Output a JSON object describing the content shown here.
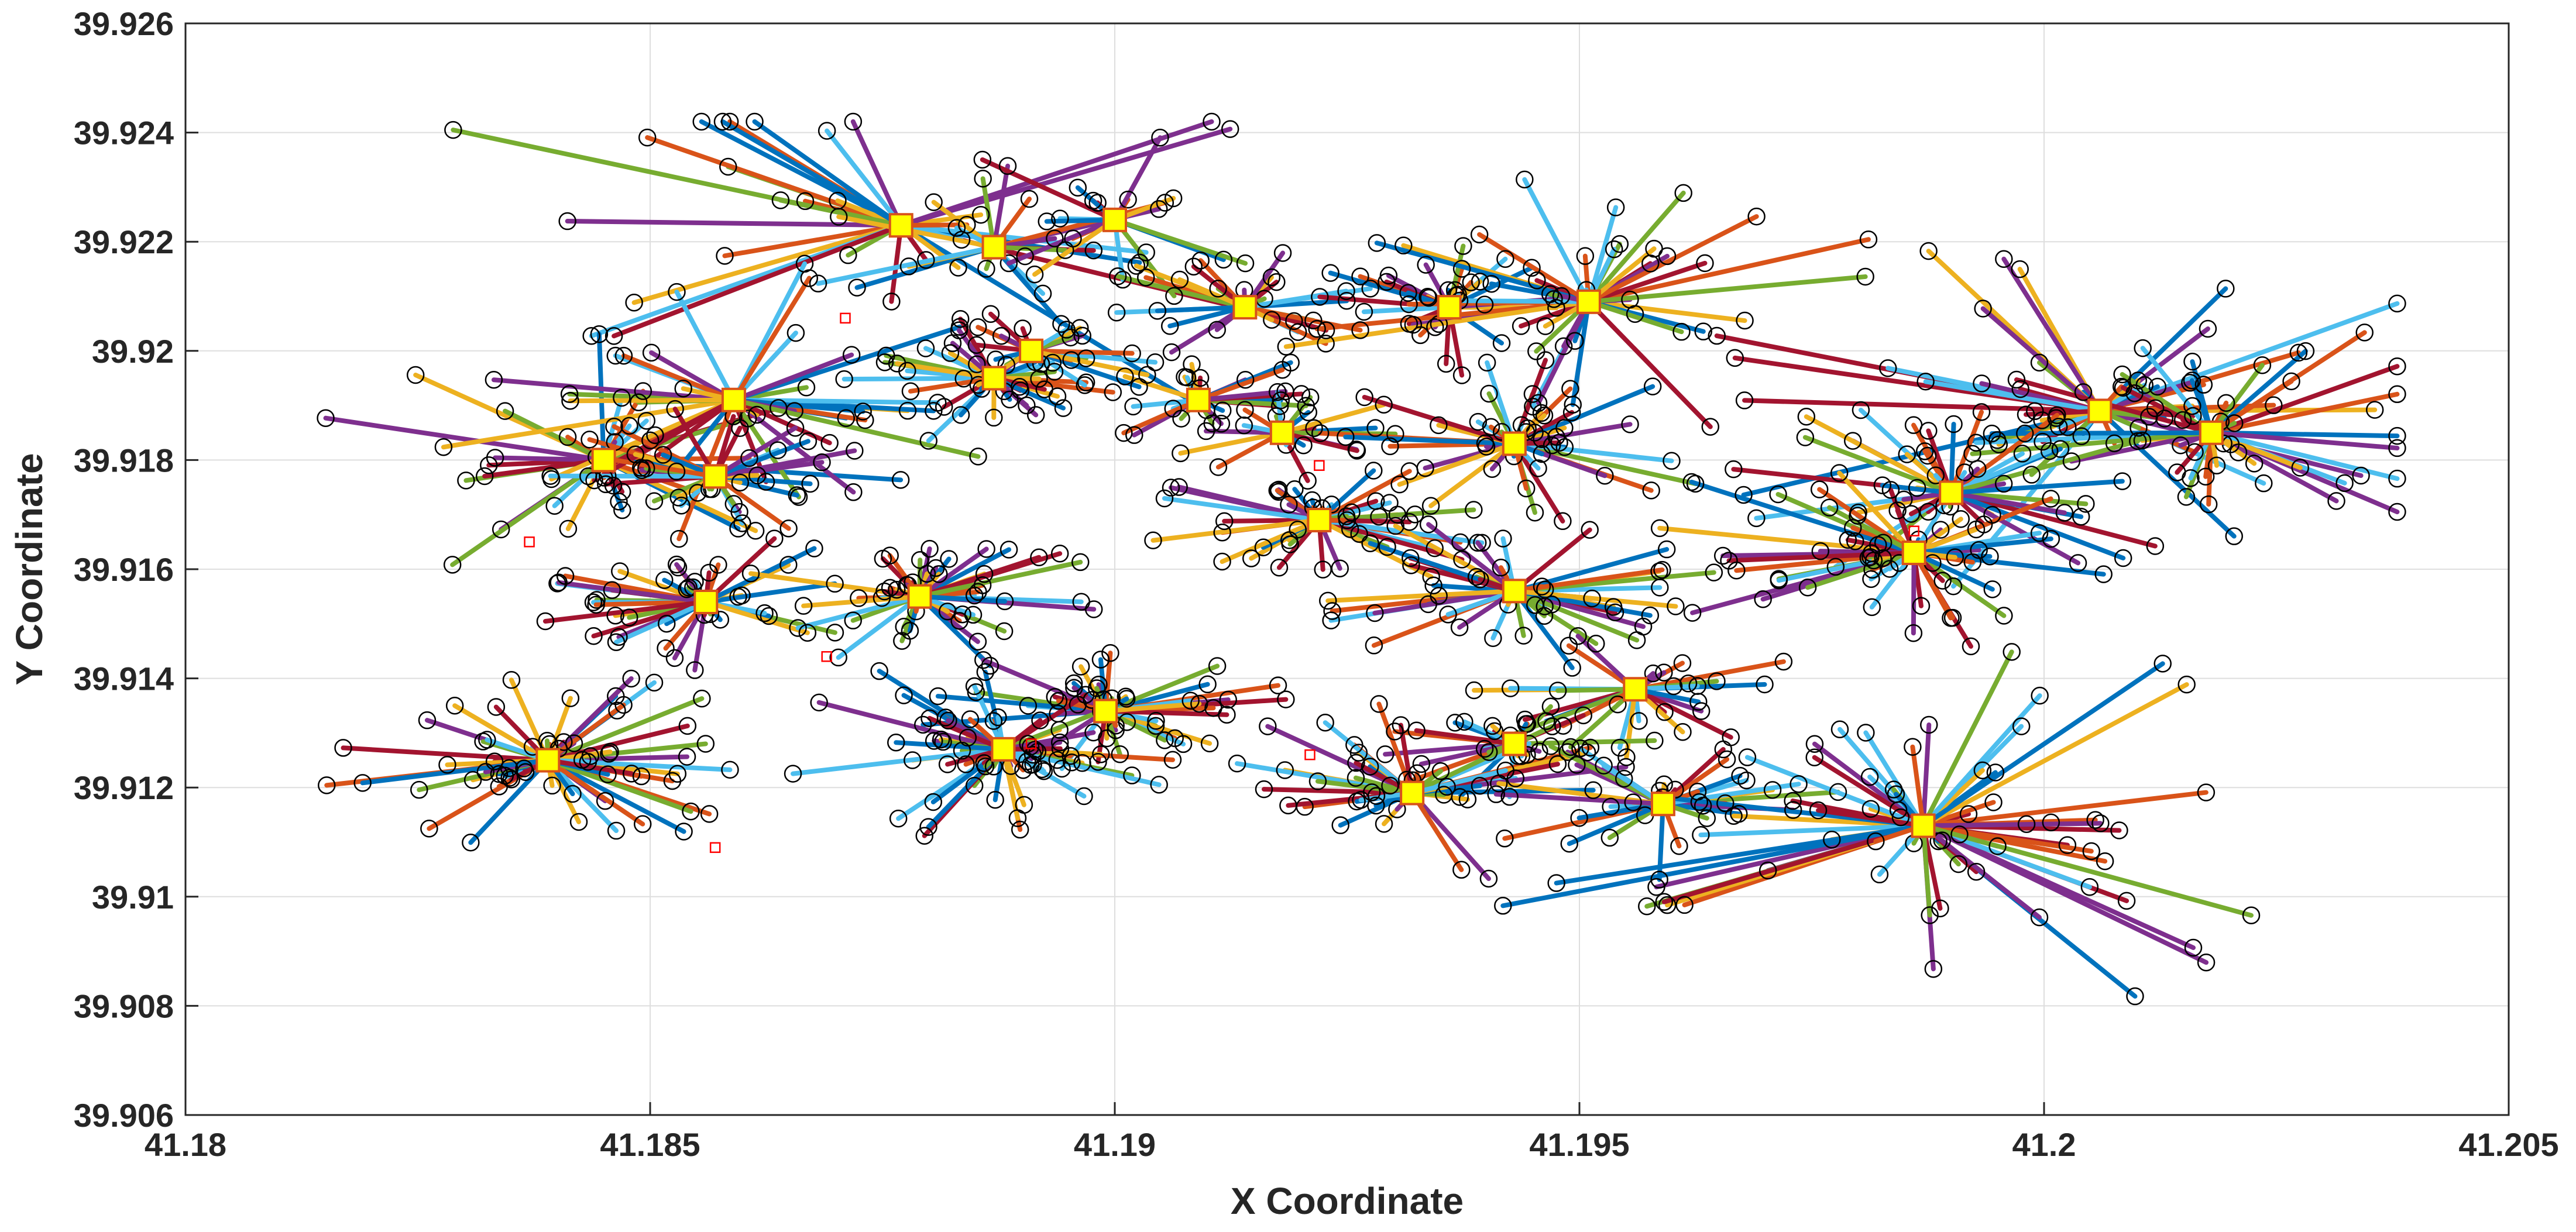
{
  "chart_data": {
    "type": "scatter",
    "title": "",
    "xlabel": "X Coordinate",
    "ylabel": "Y Coordinate",
    "xlim": [
      41.18,
      41.205
    ],
    "ylim": [
      39.906,
      39.926
    ],
    "xticks": [
      "41.18",
      "41.185",
      "41.19",
      "41.195",
      "41.2",
      "41.205"
    ],
    "yticks": [
      "39.906",
      "39.908",
      "39.91",
      "39.912",
      "39.914",
      "39.916",
      "39.918",
      "39.92",
      "39.922",
      "39.924",
      "39.926"
    ],
    "grid": true,
    "legend": "none",
    "line_colors": [
      "#0072BD",
      "#D95319",
      "#EDB120",
      "#7E2F8E",
      "#77AC30",
      "#4DBEEE",
      "#A2142F"
    ],
    "hub_style": {
      "marker": "square",
      "fill": "#FFFF00",
      "edge": "#D95319"
    },
    "customer_style": {
      "marker": "circle",
      "fill": "none",
      "edge": "#000000"
    },
    "unassigned_style": {
      "marker": "square",
      "fill": "none",
      "edge": "#FF0000"
    },
    "hubs": [
      {
        "x": 41.1877,
        "y": 39.9223,
        "spokes": 30,
        "radius": [
          0.5,
          6.0
        ]
      },
      {
        "x": 41.1887,
        "y": 39.9219,
        "spokes": 18,
        "radius": [
          0.3,
          2.2
        ]
      },
      {
        "x": 41.19,
        "y": 39.9224,
        "spokes": 16,
        "radius": [
          0.3,
          2.4
        ]
      },
      {
        "x": 41.1914,
        "y": 39.9208,
        "spokes": 26,
        "radius": [
          0.3,
          1.6
        ]
      },
      {
        "x": 41.1936,
        "y": 39.9208,
        "spokes": 30,
        "radius": [
          0.3,
          1.8
        ]
      },
      {
        "x": 41.1951,
        "y": 39.9209,
        "spokes": 40,
        "radius": [
          0.3,
          3.5
        ]
      },
      {
        "x": 41.2006,
        "y": 39.9189,
        "spokes": 50,
        "radius": [
          0.5,
          4.8
        ]
      },
      {
        "x": 41.2018,
        "y": 39.9185,
        "spokes": 40,
        "radius": [
          0.3,
          3.2
        ]
      },
      {
        "x": 41.1845,
        "y": 39.918,
        "spokes": 32,
        "radius": [
          0.3,
          3.4
        ]
      },
      {
        "x": 41.1859,
        "y": 39.9191,
        "spokes": 36,
        "radius": [
          0.4,
          3.6
        ]
      },
      {
        "x": 41.1857,
        "y": 39.9177,
        "spokes": 30,
        "radius": [
          0.3,
          1.8
        ]
      },
      {
        "x": 41.1887,
        "y": 39.9195,
        "spokes": 34,
        "radius": [
          0.3,
          1.8
        ]
      },
      {
        "x": 41.1891,
        "y": 39.92,
        "spokes": 20,
        "radius": [
          0.3,
          1.6
        ]
      },
      {
        "x": 41.1909,
        "y": 39.9191,
        "spokes": 22,
        "radius": [
          0.3,
          1.4
        ]
      },
      {
        "x": 41.1918,
        "y": 39.9185,
        "spokes": 18,
        "radius": [
          0.3,
          1.4
        ]
      },
      {
        "x": 41.1943,
        "y": 39.9183,
        "spokes": 44,
        "radius": [
          0.3,
          2.2
        ]
      },
      {
        "x": 41.199,
        "y": 39.9174,
        "spokes": 40,
        "radius": [
          0.3,
          2.6
        ]
      },
      {
        "x": 41.1922,
        "y": 39.9169,
        "spokes": 44,
        "radius": [
          0.3,
          2.0
        ]
      },
      {
        "x": 41.1856,
        "y": 39.9154,
        "spokes": 40,
        "radius": [
          0.3,
          1.8
        ]
      },
      {
        "x": 41.1879,
        "y": 39.9155,
        "spokes": 44,
        "radius": [
          0.3,
          2.0
        ]
      },
      {
        "x": 41.1943,
        "y": 39.9156,
        "spokes": 44,
        "radius": [
          0.3,
          2.2
        ]
      },
      {
        "x": 41.1986,
        "y": 39.9163,
        "spokes": 54,
        "radius": [
          0.3,
          3.0
        ]
      },
      {
        "x": 41.1899,
        "y": 39.9134,
        "spokes": 44,
        "radius": [
          0.3,
          2.0
        ]
      },
      {
        "x": 41.1956,
        "y": 39.9138,
        "spokes": 28,
        "radius": [
          0.3,
          1.8
        ]
      },
      {
        "x": 41.1943,
        "y": 39.9128,
        "spokes": 22,
        "radius": [
          0.3,
          1.6
        ]
      },
      {
        "x": 41.1839,
        "y": 39.9125,
        "spokes": 60,
        "radius": [
          0.3,
          2.5
        ]
      },
      {
        "x": 41.1888,
        "y": 39.9127,
        "spokes": 60,
        "radius": [
          0.3,
          2.4
        ]
      },
      {
        "x": 41.1932,
        "y": 39.9119,
        "spokes": 42,
        "radius": [
          0.3,
          2.4
        ]
      },
      {
        "x": 41.1959,
        "y": 39.9117,
        "spokes": 34,
        "radius": [
          0.3,
          2.0
        ]
      },
      {
        "x": 41.1987,
        "y": 39.9113,
        "spokes": 64,
        "radius": [
          0.3,
          5.0
        ]
      }
    ],
    "unassigned": [
      {
        "x": 41.1837,
        "y": 39.9165
      },
      {
        "x": 41.1857,
        "y": 39.9109
      },
      {
        "x": 41.1869,
        "y": 39.9144
      },
      {
        "x": 41.1891,
        "y": 39.9128
      },
      {
        "x": 41.1922,
        "y": 39.9179
      },
      {
        "x": 41.1921,
        "y": 39.9126
      },
      {
        "x": 41.1986,
        "y": 39.9167
      },
      {
        "x": 41.1871,
        "y": 39.9206
      }
    ]
  }
}
